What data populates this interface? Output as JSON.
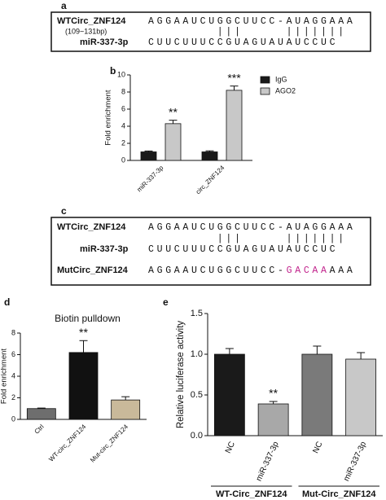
{
  "panel_labels": [
    "a",
    "b",
    "c",
    "d",
    "e"
  ],
  "sequence_panel_a": {
    "wt_name": "WTCirc_ZNF124",
    "wt_range": "(109~131bp)",
    "wt_seq": "AGGAAUCUGGCUUCC-AUAGGAAA",
    "pairs": "        |||     |||||||",
    "mir_name": "miR-337-3p",
    "mir_seq": "CUUCUUUCCGUAGUAUAUCCUC"
  },
  "sequence_panel_c": {
    "wt_name": "WTCirc_ZNF124",
    "wt_seq": "AGGAAUCUGGCUUCC-AUAGGAAA",
    "pairs": "        |||     |||||||",
    "mir_name": "miR-337-3p",
    "mir_seq": "CUUCUUUCCGUAGUAUAUCCUC",
    "mut_name": "MutCirc_ZNF124",
    "mut_seq": [
      "AGGAAUCUGGCUUCC-",
      "GACAA",
      "AAA"
    ],
    "mut_color": "#c0208a"
  },
  "chart_data": [
    {
      "type": "bar",
      "ylabel": "Fold enrichment",
      "categories": [
        "miR-337-3p",
        "circ_ZNF124"
      ],
      "series": [
        {
          "name": "IgG",
          "color": "#1a1a1a",
          "values": [
            1.0,
            1.0
          ],
          "errors": [
            0.1,
            0.12
          ]
        },
        {
          "name": "AGO2",
          "color": "#c8c8c8",
          "values": [
            4.3,
            8.2
          ],
          "errors": [
            0.4,
            0.5
          ],
          "annotations": [
            "**",
            "***"
          ]
        }
      ],
      "ylim": [
        0,
        10
      ],
      "yticks": [
        0,
        2,
        4,
        6,
        8,
        10
      ],
      "legend": "upper right"
    },
    {
      "type": "bar",
      "title": "Biotin pulldown",
      "ylabel": "Fold enrichment",
      "categories": [
        "Ctrl",
        "WT-circ_ZNF124",
        "Mut-circ_ZNF124"
      ],
      "values": [
        1.0,
        6.2,
        1.8
      ],
      "errors": [
        0.05,
        1.1,
        0.3
      ],
      "colors": [
        "#6e6e6e",
        "#111111",
        "#c9b99a"
      ],
      "annotations": [
        null,
        "**",
        null
      ],
      "ylim": [
        0,
        8
      ],
      "yticks": [
        0,
        2,
        4,
        6,
        8
      ]
    },
    {
      "type": "bar",
      "ylabel": "Relative luciferase activity",
      "categories": [
        "NC",
        "miR-337-3p",
        "NC",
        "miR-337-3p"
      ],
      "values": [
        1.0,
        0.39,
        1.0,
        0.94
      ],
      "errors": [
        0.07,
        0.03,
        0.1,
        0.08
      ],
      "colors": [
        "#1a1a1a",
        "#a8a8a8",
        "#7a7a7a",
        "#c8c8c8"
      ],
      "annotations": [
        null,
        "**",
        null,
        null
      ],
      "groups": [
        "WT-Circ_ZNF124",
        "Mut-Circ_ZNF124"
      ],
      "ylim": [
        0,
        1.5
      ],
      "yticks": [
        {
          "value": 0,
          "label": "0.0"
        },
        0.5,
        {
          "value": 1,
          "label": "1.0"
        },
        1.5
      ]
    }
  ]
}
